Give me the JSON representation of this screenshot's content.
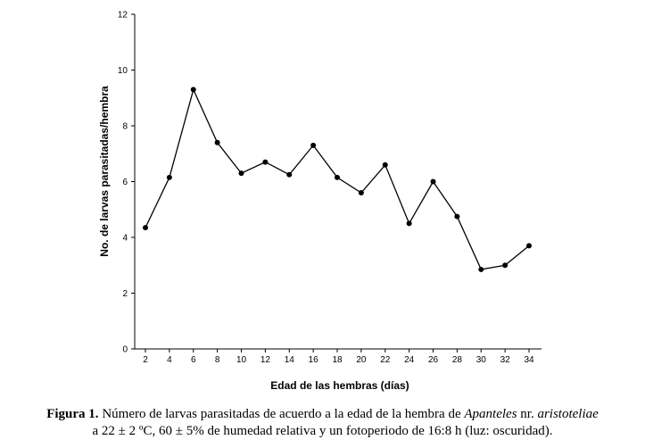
{
  "chart_data": {
    "type": "line",
    "x": [
      2,
      4,
      6,
      8,
      10,
      12,
      14,
      16,
      18,
      20,
      22,
      24,
      26,
      28,
      30,
      32,
      34
    ],
    "series": [
      {
        "values": [
          4.35,
          6.15,
          9.3,
          7.4,
          6.3,
          6.7,
          6.25,
          7.3,
          6.15,
          5.6,
          6.6,
          4.5,
          6.0,
          4.75,
          2.85,
          3.0,
          3.7
        ]
      }
    ],
    "xlabel": "Edad de las hembras  (días)",
    "ylabel": "No. de larvas parasitadas/hembra",
    "xticks": [
      "2",
      "4",
      "6",
      "8",
      "10",
      "12",
      "14",
      "16",
      "18",
      "20",
      "22",
      "24",
      "26",
      "28",
      "30",
      "32",
      "34"
    ],
    "yticks": [
      "0",
      "2",
      "4",
      "6",
      "8",
      "10",
      "12"
    ],
    "ylim": [
      0,
      12
    ],
    "grid": false
  },
  "caption": {
    "label": "Figura 1.",
    "text1": " Número de larvas parasitadas de acuerdo a la edad de la hembra de ",
    "species_genus": "Apanteles",
    "text2": " nr. ",
    "species_epithet": "aristoteliae",
    "line2": "a 22 ± 2 ºC, 60 ± 5% de humedad relativa y un fotoperiodo de 16:8 h (luz: oscuridad)."
  }
}
